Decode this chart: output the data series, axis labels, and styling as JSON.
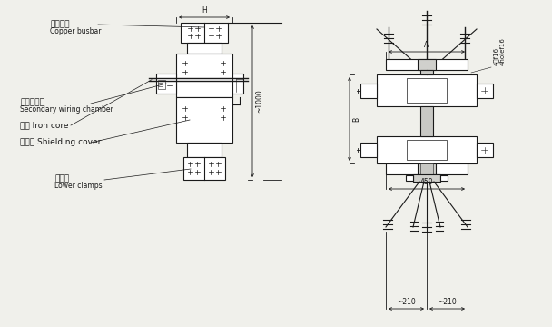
{
  "bg_color": "#f0f0eb",
  "line_color": "#1a1a1a",
  "labels": {
    "copper_busbar_cn": "铜母线组",
    "copper_busbar_en": "Copper busbar",
    "secondary_cn": "二次接线室",
    "secondary_en": "Secondary wiring chamber",
    "iron_core_cn": "铁心 Iron core",
    "shielding_cn": "屏蔽罩 Shielding cover",
    "lower_clamps_cn": "下夹件",
    "lower_clamps_en": "Lower clamps",
    "H": "H",
    "dim_1000": "~1000",
    "dim_A": "A",
    "dim_B": "B",
    "dim_450": "450",
    "dim_210a": "~210",
    "dim_210b": "~210",
    "hole_label_cn": "4孔f16",
    "hole_label_en": "4holef16"
  },
  "font_sizes": {
    "label_cn": 6.5,
    "label_en": 5.5,
    "dim_text": 5.5,
    "hole_text": 5.0
  }
}
